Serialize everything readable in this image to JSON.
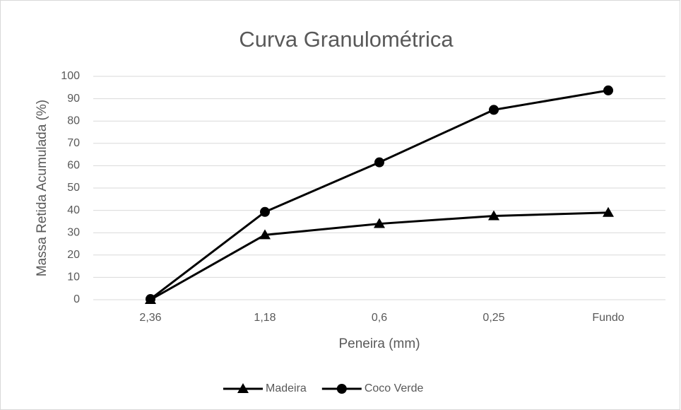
{
  "chart_data": {
    "type": "line",
    "title": "Curva Granulométrica",
    "x_label": "Peneira (mm)",
    "y_label": "Massa Retida Acumulada (%)",
    "categories": [
      "2,36",
      "1,18",
      "0,6",
      "0,25",
      "Fundo"
    ],
    "series": [
      {
        "name": "Madeira",
        "color": "#000000",
        "marker": "triangle",
        "values": [
          0,
          29,
          34,
          37.5,
          39
        ]
      },
      {
        "name": "Coco Verde",
        "color": "#000000",
        "marker": "circle",
        "values": [
          0.3,
          39.3,
          61.5,
          85,
          93.7
        ]
      }
    ],
    "ylim": [
      0,
      100
    ],
    "yticks": [
      0,
      10,
      20,
      30,
      40,
      50,
      60,
      70,
      80,
      90,
      100
    ],
    "grid": true,
    "legend": "bottom"
  }
}
